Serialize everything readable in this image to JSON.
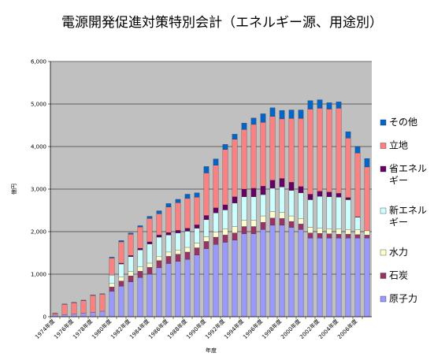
{
  "chart_data": {
    "type": "bar",
    "stacked": true,
    "title": "電源開発促進対策特別会計（エネルギー源、用途別）",
    "xlabel": "年度",
    "ylabel": "億円",
    "ylim": [
      0,
      6000
    ],
    "yticks": [
      "0",
      "1,000",
      "2,000",
      "3,000",
      "4,000",
      "5,000",
      "6,000"
    ],
    "ytick_values": [
      0,
      1000,
      2000,
      3000,
      4000,
      5000,
      6000
    ],
    "grid": true,
    "legend_position": "right",
    "categories": [
      "1974年度",
      "1975年度",
      "1976年度",
      "1977年度",
      "1978年度",
      "1979年度",
      "1980年度",
      "1981年度",
      "1982年度",
      "1983年度",
      "1984年度",
      "1985年度",
      "1986年度",
      "1987年度",
      "1988年度",
      "1989年度",
      "1990年度",
      "1991年度",
      "1992年度",
      "1993年度",
      "1994年度",
      "1995年度",
      "1996年度",
      "1997年度",
      "1998年度",
      "1999年度",
      "2000年度",
      "2001年度",
      "2002年度",
      "2003年度",
      "2004年度",
      "2005年度",
      "2006年度",
      "2007年度"
    ],
    "xtick_labels": [
      "1974年度",
      "",
      "1976年度",
      "",
      "1978年度",
      "",
      "1980年度",
      "",
      "1982年度",
      "",
      "1984年度",
      "",
      "1986年度",
      "",
      "1988年度",
      "",
      "1990年度",
      "",
      "1992年度",
      "",
      "1994年度",
      "",
      "1996年度",
      "",
      "1998年度",
      "",
      "2000年度",
      "",
      "2002年度",
      "",
      "2004年度",
      "",
      "2006年度",
      ""
    ],
    "series": [
      {
        "name": "原子力",
        "color": "#9999ff",
        "values": [
          40,
          50,
          60,
          80,
          100,
          130,
          600,
          720,
          820,
          920,
          1000,
          1150,
          1250,
          1300,
          1350,
          1450,
          1600,
          1700,
          1750,
          1800,
          1950,
          1950,
          2050,
          2150,
          2150,
          2100,
          2050,
          1850,
          1850,
          1850,
          1850,
          1850,
          1850,
          1850
        ]
      },
      {
        "name": "石炭",
        "color": "#993366",
        "values": [
          0,
          0,
          0,
          0,
          0,
          0,
          100,
          120,
          140,
          150,
          160,
          170,
          170,
          170,
          170,
          170,
          170,
          170,
          170,
          170,
          170,
          170,
          170,
          170,
          160,
          140,
          130,
          120,
          110,
          100,
          90,
          90,
          80,
          70
        ]
      },
      {
        "name": "水力",
        "color": "#ffffcc",
        "values": [
          0,
          0,
          0,
          0,
          0,
          0,
          80,
          100,
          100,
          100,
          100,
          100,
          100,
          100,
          110,
          110,
          110,
          120,
          140,
          150,
          150,
          150,
          150,
          150,
          140,
          130,
          130,
          130,
          120,
          120,
          120,
          110,
          110,
          100
        ]
      },
      {
        "name": "新エネルギー",
        "color": "#ccffff",
        "values": [
          0,
          0,
          0,
          0,
          0,
          0,
          200,
          300,
          350,
          400,
          450,
          450,
          400,
          400,
          380,
          350,
          400,
          450,
          450,
          550,
          550,
          550,
          500,
          550,
          600,
          600,
          600,
          650,
          750,
          750,
          750,
          700,
          300,
          0
        ]
      },
      {
        "name": "省エネルギー",
        "color": "#660066",
        "values": [
          0,
          0,
          0,
          0,
          0,
          0,
          0,
          20,
          30,
          40,
          50,
          50,
          60,
          60,
          70,
          80,
          100,
          120,
          120,
          150,
          180,
          200,
          200,
          190,
          200,
          190,
          150,
          130,
          120,
          110,
          90,
          50,
          10,
          0
        ]
      },
      {
        "name": "立地",
        "color": "#ff8080",
        "values": [
          40,
          240,
          270,
          300,
          400,
          400,
          400,
          500,
          500,
          500,
          550,
          500,
          600,
          650,
          700,
          650,
          1000,
          1000,
          1300,
          1350,
          1400,
          1500,
          1500,
          1500,
          1400,
          1500,
          1600,
          2000,
          1950,
          1950,
          2000,
          1400,
          1500,
          1500
        ]
      },
      {
        "name": "その他",
        "color": "#0066cc",
        "values": [
          5,
          10,
          10,
          10,
          10,
          10,
          20,
          30,
          30,
          30,
          50,
          70,
          80,
          80,
          100,
          100,
          150,
          150,
          120,
          120,
          150,
          150,
          200,
          200,
          200,
          200,
          200,
          200,
          200,
          150,
          150,
          150,
          150,
          200
        ]
      }
    ]
  }
}
